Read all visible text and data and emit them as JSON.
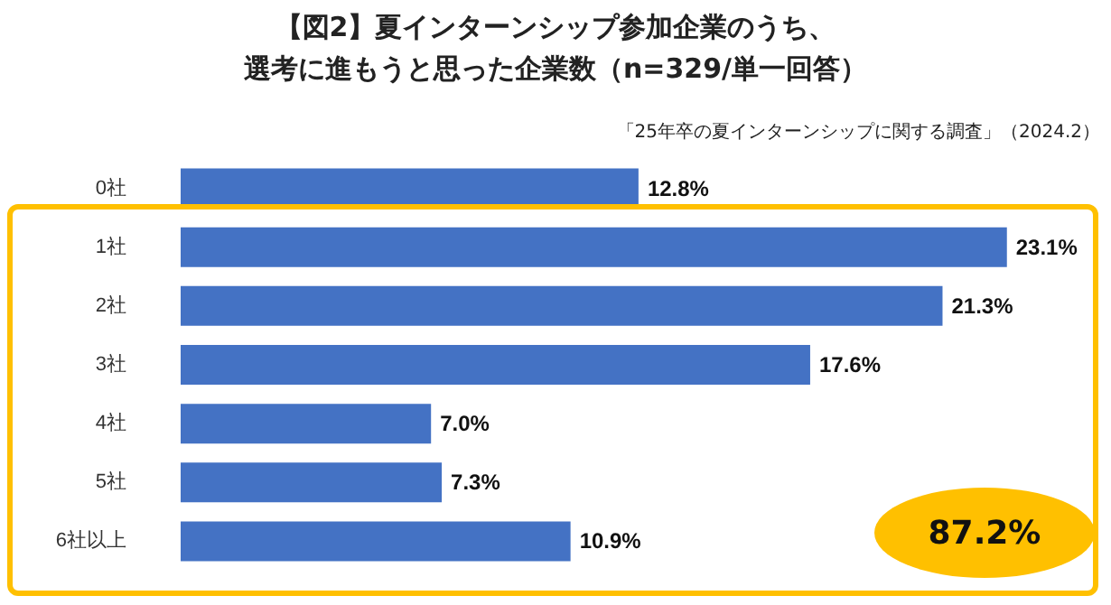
{
  "chart_data": {
    "type": "bar",
    "orientation": "horizontal",
    "title": "【図2】夏インターンシップ参加企業のうち、",
    "subtitle": "選考に進もうと思った企業数（n=329/単一回答）",
    "categories": [
      "0社",
      "1社",
      "2社",
      "3社",
      "4社",
      "5社",
      "6社以上"
    ],
    "values": [
      12.8,
      23.1,
      21.3,
      17.6,
      7.0,
      7.3,
      10.9
    ],
    "value_labels": [
      "12.8%",
      "23.1%",
      "21.3%",
      "17.6%",
      "7.0%",
      "7.3%",
      "10.9%"
    ],
    "color": "#4472c4",
    "annotations": [
      "「25年卒の夏インターンシップに関する調査」（2024.2）",
      "87.2%"
    ]
  }
}
